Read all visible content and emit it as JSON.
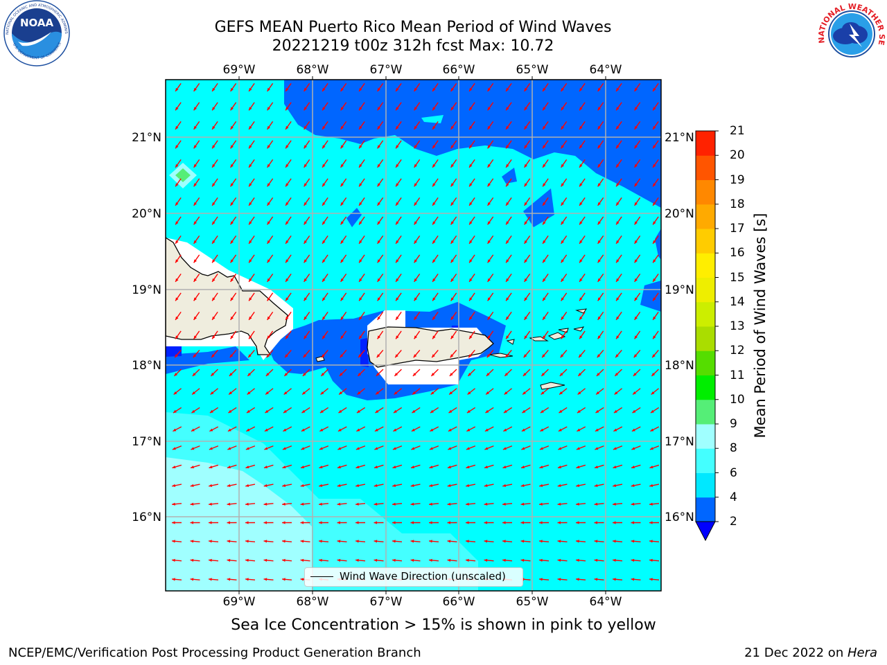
{
  "header": {
    "title_line1": "GEFS MEAN Puerto Rico Mean Period of Wind Waves",
    "title_line2": "20221219 t00z 312h fcst   Max: 10.72"
  },
  "logos": {
    "noaa": {
      "text": "NOAA",
      "ring_text": "NATIONAL OCEANIC AND ATMOSPHERIC ADMINISTRATION",
      "bottom_text": "U.S. DEPARTMENT OF COMMERCE"
    },
    "nws": {
      "ring_text": "NATIONAL WEATHER SERVICE"
    }
  },
  "map": {
    "lon_ticks": [
      "69°W",
      "68°W",
      "67°W",
      "66°W",
      "65°W",
      "64°W"
    ],
    "lat_ticks_left": [
      "21°N",
      "20°N",
      "19°N",
      "18°N",
      "17°N",
      "16°N"
    ],
    "lat_ticks_right": [
      "21°N",
      "20°N",
      "19°N",
      "18°N",
      "17°N",
      "16°N"
    ],
    "extent": {
      "lon_min": -70.0,
      "lon_max": -63.25,
      "lat_min": 15.05,
      "lat_max": 21.75
    },
    "grid": true,
    "field_max": 10.72,
    "arrow_direction": "toward southwest",
    "arrow_color": "#ff0000"
  },
  "legend": {
    "label": "Wind Wave Direction (unscaled)"
  },
  "colorbar": {
    "label": "Mean Period of Wind Waves [s]",
    "tick_labels": [
      "2",
      "4",
      "6",
      "8",
      "9",
      "10",
      "11",
      "12",
      "13",
      "14",
      "15",
      "16",
      "17",
      "18",
      "19",
      "20",
      "21"
    ],
    "colors": [
      "#0022ff",
      "#0066ff",
      "#00e8ff",
      "#44ffff",
      "#a0ffff",
      "#55ee77",
      "#00ee00",
      "#55dd00",
      "#aadd00",
      "#ccee00",
      "#eeee00",
      "#ffee00",
      "#ffcc00",
      "#ffaa00",
      "#ff8800",
      "#ff5500",
      "#ff2200",
      "#ff0000"
    ],
    "underflow_color": "#0000ff"
  },
  "notes": {
    "sea_ice": "Sea Ice Concentration > 15% is shown in pink to yellow"
  },
  "footer": {
    "left": "NCEP/EMC/Verification Post Processing Product Generation Branch",
    "date": "21 Dec 2022 on ",
    "machine": "Hera"
  }
}
